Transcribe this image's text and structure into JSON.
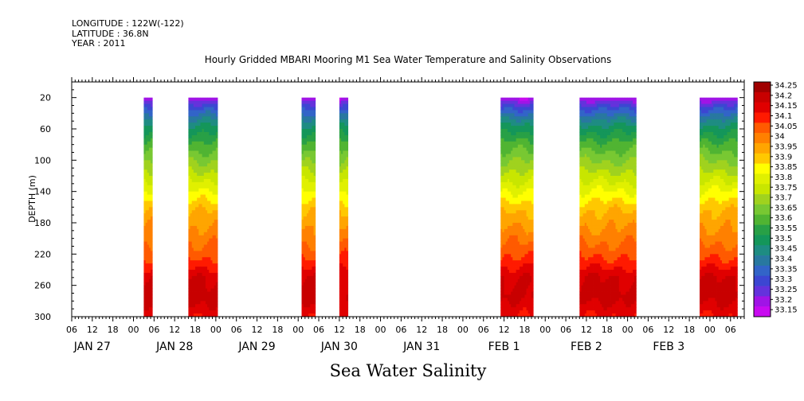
{
  "meta": {
    "longitude": "LONGITUDE : 122W(-122)",
    "latitude": "LATITUDE : 36.8N",
    "year": "YEAR : 2011"
  },
  "chart_data": {
    "type": "heatmap",
    "title": "Hourly Gridded MBARI Mooring M1 Sea Water Temperature and Salinity Observations",
    "xlabel": "Sea Water Salinity",
    "ylabel": "DEPTH (m)",
    "y_reversed": true,
    "ylim": [
      300,
      0
    ],
    "y_ticks": [
      20,
      60,
      100,
      140,
      180,
      220,
      260,
      300
    ],
    "x_range_hours": [
      0,
      196
    ],
    "x_hour_ticks": [
      "06",
      "12",
      "18",
      "00",
      "06",
      "12",
      "18",
      "00",
      "06",
      "12",
      "18",
      "00",
      "06",
      "12",
      "18",
      "00",
      "06",
      "12",
      "18",
      "00",
      "06",
      "12",
      "18",
      "00",
      "06",
      "12",
      "18",
      "00",
      "06",
      "12",
      "18",
      "00",
      "06"
    ],
    "x_date_labels": [
      {
        "label": "JAN 27",
        "hour": 6
      },
      {
        "label": "JAN 28",
        "hour": 30
      },
      {
        "label": "JAN 29",
        "hour": 54
      },
      {
        "label": "JAN 30",
        "hour": 78
      },
      {
        "label": "JAN 31",
        "hour": 102
      },
      {
        "label": "FEB  1",
        "hour": 126
      },
      {
        "label": "FEB  2",
        "hour": 150
      },
      {
        "label": "FEB  3",
        "hour": 174
      }
    ],
    "colorbar": {
      "levels": [
        "34.25",
        "34.2",
        "34.15",
        "34.1",
        "34.05",
        "34",
        "33.95",
        "33.9",
        "33.85",
        "33.8",
        "33.75",
        "33.7",
        "33.65",
        "33.6",
        "33.55",
        "33.5",
        "33.45",
        "33.4",
        "33.35",
        "33.3",
        "33.25",
        "33.2",
        "33.15"
      ],
      "colors": [
        "#a00000",
        "#c80000",
        "#e00000",
        "#ff1a00",
        "#ff5a00",
        "#ff8000",
        "#ffa500",
        "#ffc800",
        "#ffff00",
        "#e0f000",
        "#c8e600",
        "#a0d21e",
        "#78c832",
        "#50b432",
        "#28a046",
        "#14965a",
        "#1e8c82",
        "#2878a0",
        "#3264c8",
        "#3c46d2",
        "#6432dc",
        "#a014e6",
        "#c80af0"
      ]
    },
    "profile": [
      {
        "depth": 20,
        "value": 33.2
      },
      {
        "depth": 35,
        "value": 33.35
      },
      {
        "depth": 55,
        "value": 33.5
      },
      {
        "depth": 80,
        "value": 33.62
      },
      {
        "depth": 110,
        "value": 33.73
      },
      {
        "depth": 140,
        "value": 33.85
      },
      {
        "depth": 165,
        "value": 33.95
      },
      {
        "depth": 195,
        "value": 34.02
      },
      {
        "depth": 225,
        "value": 34.1
      },
      {
        "depth": 250,
        "value": 34.2
      },
      {
        "depth": 275,
        "value": 34.22
      },
      {
        "depth": 300,
        "value": 34.15
      }
    ],
    "data_segments": [
      {
        "start_hour": 21,
        "end_hour": 23.5
      },
      {
        "start_hour": 34,
        "end_hour": 42.5
      },
      {
        "start_hour": 67,
        "end_hour": 71
      },
      {
        "start_hour": 78,
        "end_hour": 80.5
      },
      {
        "start_hour": 125,
        "end_hour": 134.5
      },
      {
        "start_hour": 148,
        "end_hour": 164.5
      },
      {
        "start_hour": 183,
        "end_hour": 194
      }
    ]
  }
}
